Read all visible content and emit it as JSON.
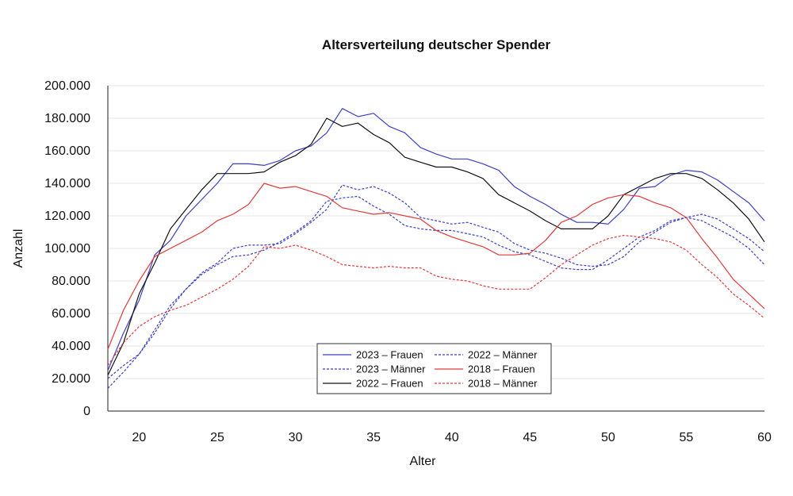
{
  "chart_data": {
    "type": "line",
    "title": "Altersverteilung deutscher Spender",
    "xlabel": "Alter",
    "ylabel": "Anzahl",
    "xlim": [
      18,
      60
    ],
    "ylim": [
      0,
      200000
    ],
    "x_ticks": [
      20,
      25,
      30,
      35,
      40,
      45,
      50,
      55,
      60
    ],
    "x_tick_labels": [
      "20",
      "25",
      "30",
      "35",
      "40",
      "45",
      "50",
      "55",
      "60"
    ],
    "y_ticks": [
      0,
      20000,
      40000,
      60000,
      80000,
      100000,
      120000,
      140000,
      160000,
      180000,
      200000
    ],
    "y_tick_labels": [
      "0",
      "20.000",
      "40.000",
      "60.000",
      "80.000",
      "100.000",
      "120.000",
      "140.000",
      "160.000",
      "180.000",
      "200.000"
    ],
    "grid": "horizontal",
    "legend_position": "bottom-center",
    "x": [
      18,
      19,
      20,
      21,
      22,
      23,
      24,
      25,
      26,
      27,
      28,
      29,
      30,
      31,
      32,
      33,
      34,
      35,
      36,
      37,
      38,
      39,
      40,
      41,
      42,
      43,
      44,
      45,
      46,
      47,
      48,
      49,
      50,
      51,
      52,
      53,
      54,
      55,
      56,
      57,
      58,
      59,
      60
    ],
    "series": [
      {
        "name": "2023 – Frauen",
        "color": "#3a3fc4",
        "dash": "solid",
        "values": [
          25000,
          48000,
          68000,
          96000,
          105000,
          120000,
          130000,
          140000,
          152000,
          152000,
          151000,
          154000,
          160000,
          163000,
          171000,
          186000,
          181000,
          183000,
          175000,
          171000,
          162000,
          158000,
          155000,
          155000,
          152000,
          148000,
          138000,
          132000,
          127000,
          121000,
          116000,
          116000,
          115000,
          124000,
          137000,
          138000,
          145000,
          148000,
          147000,
          142000,
          135000,
          128000,
          117000
        ]
      },
      {
        "name": "2023 – Männer",
        "color": "#3a3fc4",
        "dash": "dotted",
        "values": [
          20000,
          28000,
          35000,
          48000,
          63000,
          75000,
          85000,
          91000,
          100000,
          102000,
          102000,
          103000,
          109000,
          116000,
          124000,
          139000,
          136000,
          138000,
          134000,
          128000,
          119000,
          117000,
          115000,
          116000,
          113000,
          110000,
          103000,
          99000,
          97000,
          94000,
          90000,
          89000,
          90000,
          95000,
          104000,
          110000,
          116000,
          119000,
          121000,
          118000,
          112000,
          106000,
          98000
        ]
      },
      {
        "name": "2022 – Frauen",
        "color": "#111111",
        "dash": "solid",
        "values": [
          22000,
          42000,
          72000,
          91000,
          112000,
          124000,
          136000,
          146000,
          146000,
          146000,
          147000,
          153000,
          157000,
          164000,
          180000,
          175000,
          177000,
          170000,
          165000,
          156000,
          153000,
          150000,
          150000,
          147000,
          143000,
          133000,
          128000,
          123000,
          117000,
          112000,
          112000,
          112000,
          120000,
          133000,
          138000,
          143000,
          146000,
          146000,
          143000,
          136000,
          128000,
          118000,
          104000
        ]
      },
      {
        "name": "2022 – Männer",
        "color": "#3a3fc4",
        "dash": "dotted",
        "values": [
          14000,
          24000,
          35000,
          50000,
          65000,
          75000,
          84000,
          90000,
          95000,
          96000,
          99000,
          104000,
          110000,
          117000,
          129000,
          131000,
          132000,
          126000,
          121000,
          114000,
          112000,
          111000,
          111000,
          109000,
          107000,
          102000,
          98000,
          96000,
          92000,
          88000,
          87000,
          87000,
          93000,
          100000,
          107000,
          111000,
          117000,
          119000,
          117000,
          112000,
          107000,
          100000,
          90000
        ]
      },
      {
        "name": "2018 – Frauen",
        "color": "#e03a3a",
        "dash": "solid",
        "values": [
          38000,
          62000,
          80000,
          95000,
          100000,
          105000,
          110000,
          117000,
          121000,
          127000,
          140000,
          137000,
          138000,
          135000,
          132000,
          125000,
          123000,
          121000,
          122000,
          120000,
          118000,
          111000,
          107000,
          104000,
          101000,
          96000,
          96000,
          97000,
          105000,
          116000,
          120000,
          127000,
          131000,
          133000,
          132000,
          128000,
          125000,
          119000,
          106000,
          94000,
          81000,
          72000,
          63000
        ]
      },
      {
        "name": "2018 – Männer",
        "color": "#e03a3a",
        "dash": "dotted",
        "values": [
          28000,
          42000,
          52000,
          58000,
          62000,
          65000,
          70000,
          75000,
          81000,
          89000,
          101000,
          100000,
          102000,
          99000,
          95000,
          90000,
          89000,
          88000,
          89000,
          88000,
          88000,
          83000,
          81000,
          80000,
          77000,
          75000,
          75000,
          75000,
          82000,
          90000,
          96000,
          102000,
          106000,
          108000,
          107000,
          106000,
          104000,
          99000,
          90000,
          82000,
          72000,
          65000,
          57000
        ]
      }
    ]
  }
}
